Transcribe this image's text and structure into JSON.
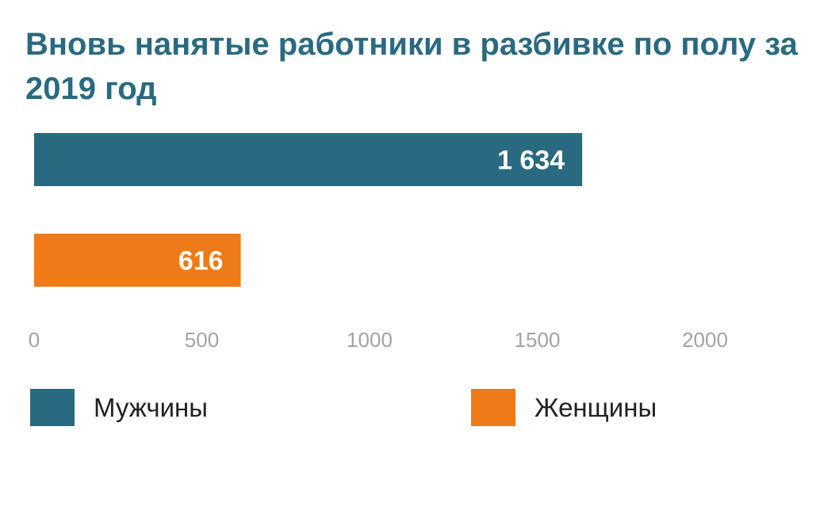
{
  "chart_data": {
    "type": "bar",
    "orientation": "horizontal",
    "title": "Вновь нанятые работники в разбивке по полу за 2019 год",
    "series": [
      {
        "name": "Мужчины",
        "value": 1634,
        "label": "1 634",
        "color": "#2a6a80"
      },
      {
        "name": "Женщины",
        "value": 616,
        "label": "616",
        "color": "#ee7b17"
      }
    ],
    "xticks": [
      0,
      500,
      1000,
      1500,
      2000
    ],
    "xlim": [
      0,
      2300
    ],
    "grid": false,
    "legend_position": "bottom"
  }
}
